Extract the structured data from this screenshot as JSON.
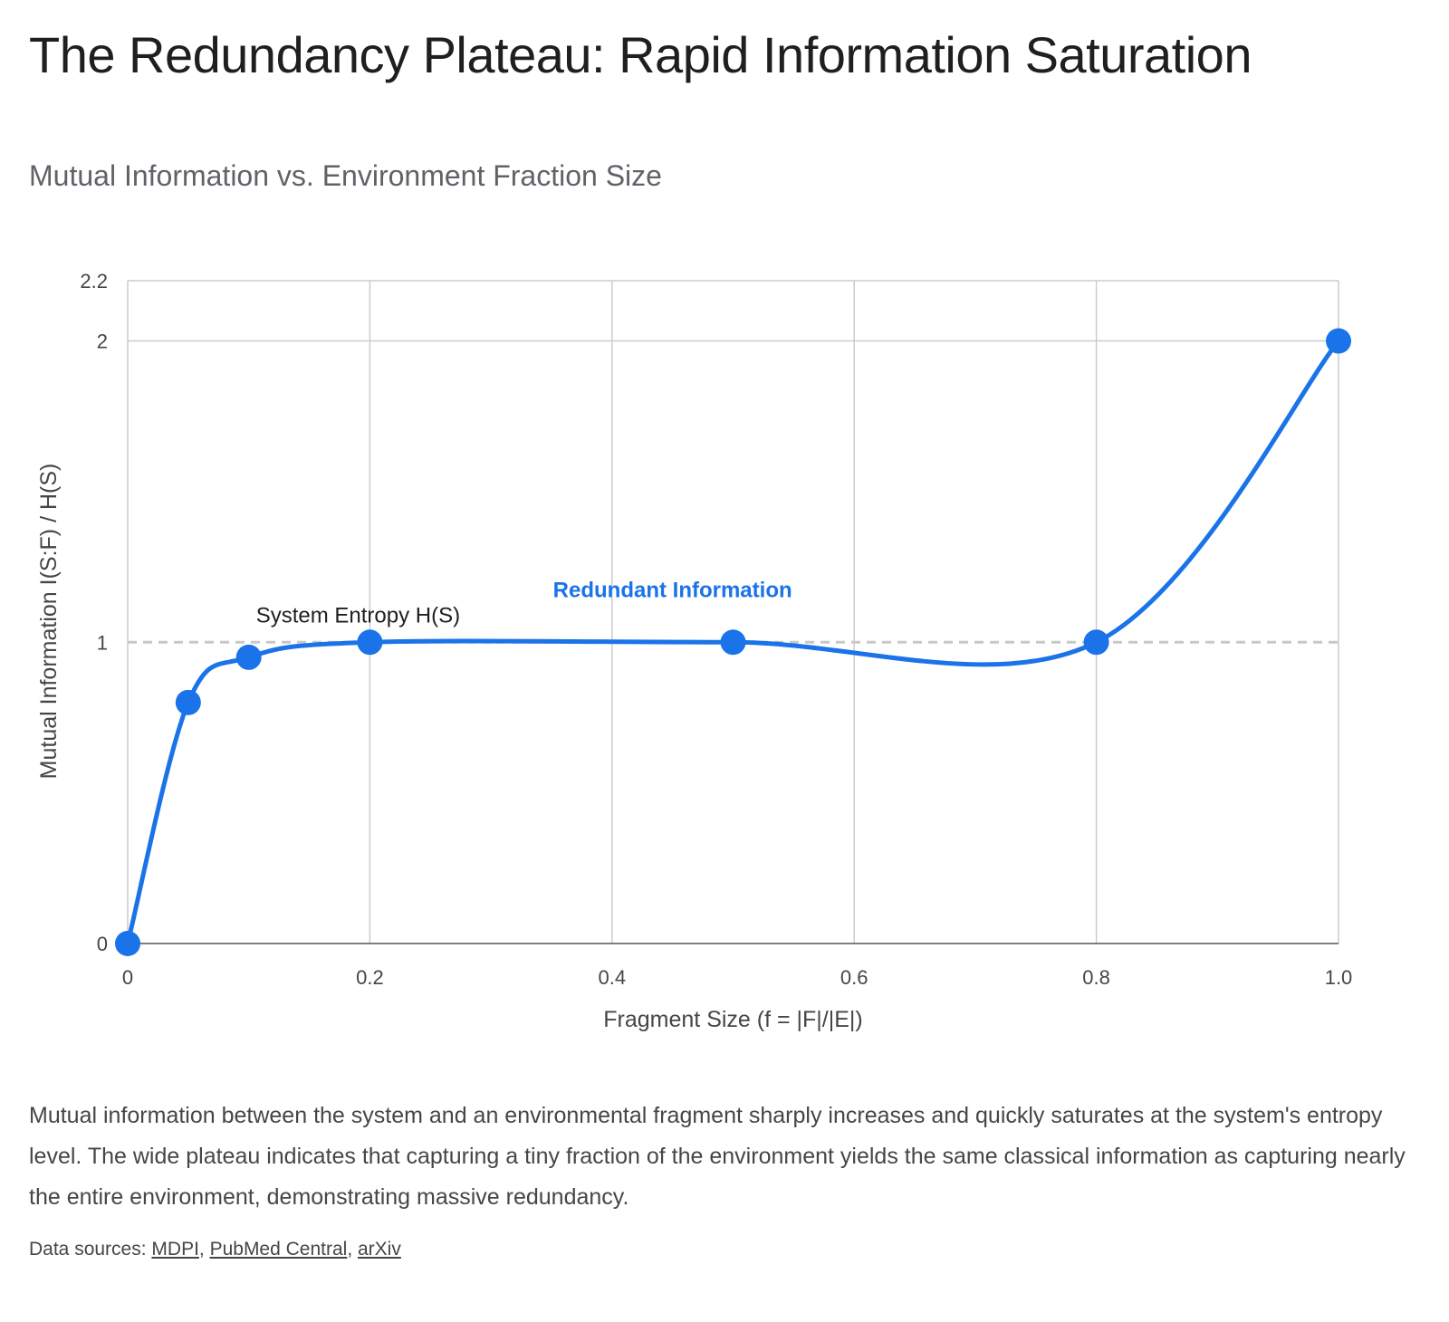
{
  "title": "The Redundancy Plateau: Rapid Information Saturation",
  "subtitle": "Mutual Information vs. Environment Fraction Size",
  "caption": "Mutual information between the system and an environmental fragment sharply increases and quickly saturates at the system's entropy level. The wide plateau indicates that capturing a tiny fraction of the environment yields the same classical information as capturing nearly the entire environment, demonstrating massive redundancy.",
  "sources": {
    "prefix": "Data sources: ",
    "links": [
      "MDPI",
      "PubMed Central",
      "arXiv"
    ]
  },
  "chart_data": {
    "type": "line",
    "xlabel": "Fragment Size (f = |F|/|E|)",
    "ylabel": "Mutual Information I(S:F) / H(S)",
    "xlim": [
      0,
      1.0
    ],
    "ylim": [
      0,
      2.2
    ],
    "x_ticks": [
      "0",
      "0.2",
      "0.4",
      "0.6",
      "0.8",
      "1.0"
    ],
    "x_tick_values": [
      0,
      0.2,
      0.4,
      0.6,
      0.8,
      1.0
    ],
    "y_ticks": [
      "0",
      "1",
      "2",
      "2.2"
    ],
    "y_tick_values": [
      0,
      1,
      2,
      2.2
    ],
    "grid": true,
    "smooth": true,
    "series": [
      {
        "color": "#1a73e8",
        "x": [
          0,
          0.05,
          0.1,
          0.2,
          0.5,
          0.8,
          1.0
        ],
        "y": [
          0,
          0.8,
          0.95,
          1.0,
          1.0,
          1.0,
          2.0
        ]
      }
    ],
    "reference_line": {
      "y": 1,
      "label": "System Entropy H(S)",
      "color": "#c8c8c8",
      "label_color": "#1f1f1f"
    },
    "annotations": [
      {
        "text": "Redundant Information",
        "x": 0.45,
        "y": 1.15,
        "color": "#1a73e8"
      }
    ]
  }
}
